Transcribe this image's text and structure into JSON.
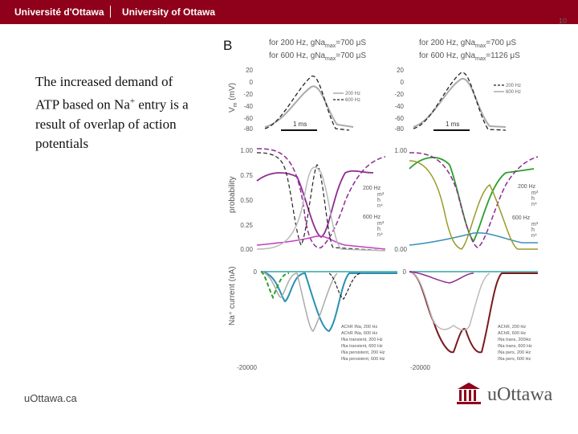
{
  "header": {
    "brand_fr": "Université d'Ottawa",
    "brand_en": "University of Ottawa"
  },
  "slide": {
    "page_number": "10",
    "text_main": "The increased demand of ATP based on Na",
    "text_sup": "+",
    "text_end": " entry is a result of overlap of action potentials"
  },
  "footer": {
    "left": "uOttawa.ca",
    "logo_text": "uOttawa"
  },
  "figure": {
    "panel_label": "B",
    "left_title_1": "for 200 Hz, gNa",
    "left_title_1_sub": "max",
    "left_title_1_val": "=700 μS",
    "left_title_2": "for 600 Hz, gNa",
    "left_title_2_sub": "max",
    "left_title_2_val": "=700 μS",
    "right_title_1": "for 200 Hz, gNa",
    "right_title_1_sub": "max",
    "right_title_1_val": "=700 μS",
    "right_title_2": "for 600 Hz, gNa",
    "right_title_2_sub": "max",
    "right_title_2_val": "=1126 μS",
    "vm_ylabel": "V",
    "vm_ylabel_sub": "m",
    "vm_ylabel_unit": " (mV)",
    "vm_ticks": [
      "20",
      "0",
      "-20",
      "-40",
      "-60",
      "-80"
    ],
    "scalebar_label": "1 ms",
    "vm_legend": [
      "200 Hz",
      "600 Hz"
    ],
    "prob_ylabel": "probability",
    "prob_ticks": [
      "1.00",
      "0.75",
      "0.50",
      "0.25",
      "0.00"
    ],
    "prob_right_ticks": [
      "1.00",
      "0.00"
    ],
    "prob_legend_200": "200 Hz",
    "prob_legend_600": "600 Hz",
    "prob_gates": [
      "m³",
      "h",
      "n⁴"
    ],
    "cur_ylabel": "Na⁺ current (nA)",
    "cur_ticks_top": "0",
    "cur_ticks_bottom": "-20000",
    "cur_legend_left": [
      "AChR INa, 200 Hz",
      "AChR INa, 600 Hz",
      "INa transient, 200 Hz",
      "INa transient, 600 Hz",
      "INa persistent, 200 Hz",
      "INa persistent, 600 Hz"
    ],
    "cur_legend_right": [
      "AChR, 200 Hz",
      "AChR, 600 Hz",
      "INa trans, 200Hz",
      "INa trans, 600 Hz",
      "INa pers, 200 Hz",
      "INa pers, 600 Hz"
    ]
  }
}
